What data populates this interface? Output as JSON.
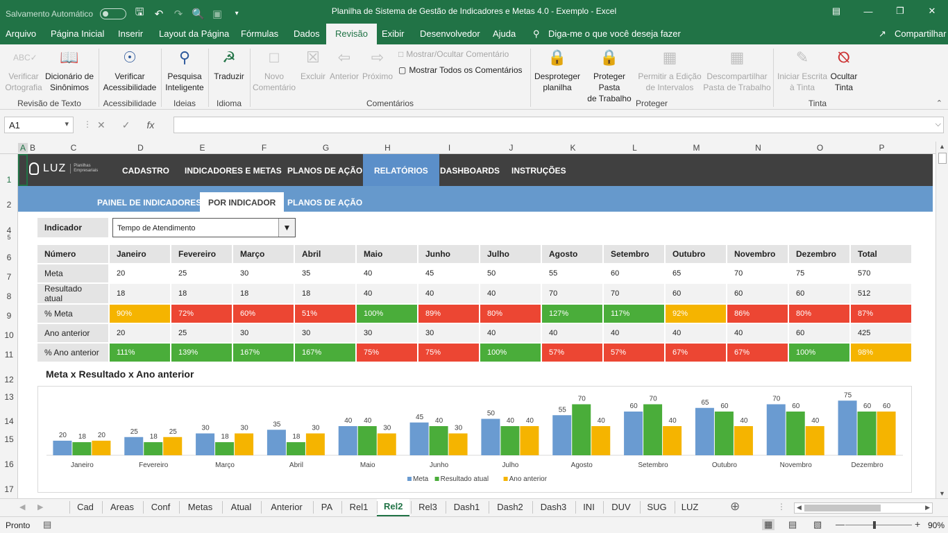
{
  "titlebar": {
    "autosave": "Salvamento Automático",
    "title": "Planilha de Sistema de Gestão de Indicadores e Metas 4.0 - Exemplo  -  Excel"
  },
  "menu": {
    "items": [
      "Arquivo",
      "Página Inicial",
      "Inserir",
      "Layout da Página",
      "Fórmulas",
      "Dados",
      "Revisão",
      "Exibir",
      "Desenvolvedor",
      "Ajuda"
    ],
    "active": "Revisão",
    "tell_me": "Diga-me o que você deseja fazer",
    "share": "Compartilhar"
  },
  "ribbon": {
    "verificar_ortografia": [
      "Verificar",
      "Ortografia"
    ],
    "dicionario": [
      "Dicionário de",
      "Sinônimos"
    ],
    "revisao_texto": "Revisão de Texto",
    "verificar_acess": [
      "Verificar",
      "Acessibilidade"
    ],
    "acessibilidade": "Acessibilidade",
    "pesquisa": [
      "Pesquisa",
      "Inteligente"
    ],
    "ideias": "Ideias",
    "traduzir": "Traduzir",
    "idioma": "Idioma",
    "novo_comentario": [
      "Novo",
      "Comentário"
    ],
    "excluir": "Excluir",
    "anterior": "Anterior",
    "proximo": "Próximo",
    "mostrar_ocultar": "Mostrar/Ocultar Comentário",
    "mostrar_todos": "Mostrar Todos os Comentários",
    "comentarios": "Comentários",
    "desproteger": [
      "Desproteger",
      "planilha"
    ],
    "proteger_pasta": [
      "Proteger Pasta",
      "de Trabalho"
    ],
    "permitir_edicao": [
      "Permitir a Edição",
      "de Intervalos"
    ],
    "descompartilhar": [
      "Descompartilhar",
      "Pasta de Trabalho"
    ],
    "proteger": "Proteger",
    "iniciar_escrita": [
      "Iniciar Escrita",
      "à Tinta"
    ],
    "ocultar_tinta": [
      "Ocultar",
      "Tinta"
    ],
    "tinta": "Tinta"
  },
  "formula": {
    "namebox": "A1",
    "fx": "fx"
  },
  "columns": [
    "A",
    "B",
    "C",
    "D",
    "E",
    "F",
    "G",
    "H",
    "I",
    "J",
    "K",
    "L",
    "M",
    "N",
    "O",
    "P"
  ],
  "rows": [
    "1",
    "2",
    "4",
    "5",
    "6",
    "7",
    "8",
    "9",
    "10",
    "11",
    "12",
    "13",
    "14",
    "15",
    "16",
    "17"
  ],
  "topnav": {
    "logo": "LUZ",
    "logo_sub": [
      "Planilhas",
      "Empresariais"
    ],
    "items": [
      "CADASTRO",
      "INDICADORES E METAS",
      "PLANOS DE AÇÃO",
      "RELATÓRIOS",
      "DASHBOARDS",
      "INSTRUÇÕES"
    ]
  },
  "subnav": {
    "items": [
      "PAINEL DE INDICADORES",
      "POR INDICADOR",
      "PLANOS DE AÇÃO"
    ]
  },
  "indicator": {
    "label": "Indicador",
    "value": "Tempo de Atendimento"
  },
  "table": {
    "headers": [
      "Número",
      "Janeiro",
      "Fevereiro",
      "Março",
      "Abril",
      "Maio",
      "Junho",
      "Julho",
      "Agosto",
      "Setembro",
      "Outubro",
      "Novembro",
      "Dezembro",
      "Total"
    ],
    "rows": [
      {
        "label": "Meta",
        "values": [
          "20",
          "25",
          "30",
          "35",
          "40",
          "45",
          "50",
          "55",
          "60",
          "65",
          "70",
          "75",
          "570"
        ]
      },
      {
        "label": "Resultado atual",
        "values": [
          "18",
          "18",
          "18",
          "18",
          "40",
          "40",
          "40",
          "70",
          "70",
          "60",
          "60",
          "60",
          "512"
        ]
      },
      {
        "label": "% Meta",
        "values": [
          "90%",
          "72%",
          "60%",
          "51%",
          "100%",
          "89%",
          "80%",
          "127%",
          "117%",
          "92%",
          "86%",
          "80%",
          "87%"
        ],
        "colors": [
          "y",
          "r",
          "r",
          "r",
          "g",
          "r",
          "r",
          "g",
          "g",
          "y",
          "r",
          "r",
          "r"
        ]
      },
      {
        "label": "Ano anterior",
        "values": [
          "20",
          "25",
          "30",
          "30",
          "30",
          "30",
          "40",
          "40",
          "40",
          "40",
          "40",
          "60",
          "425"
        ]
      },
      {
        "label": "% Ano anterior",
        "values": [
          "111%",
          "139%",
          "167%",
          "167%",
          "75%",
          "75%",
          "100%",
          "57%",
          "57%",
          "67%",
          "67%",
          "100%",
          "98%"
        ],
        "colors": [
          "g",
          "g",
          "g",
          "g",
          "r",
          "r",
          "g",
          "r",
          "r",
          "r",
          "r",
          "g",
          "y"
        ]
      }
    ]
  },
  "chart_data": {
    "type": "bar",
    "title": "Meta x Resultado x Ano anterior",
    "categories": [
      "Janeiro",
      "Fevereiro",
      "Março",
      "Abril",
      "Maio",
      "Junho",
      "Julho",
      "Agosto",
      "Setembro",
      "Outubro",
      "Novembro",
      "Dezembro"
    ],
    "series": [
      {
        "name": "Meta",
        "color": "#6a9bd1",
        "values": [
          20,
          25,
          30,
          35,
          40,
          45,
          50,
          55,
          60,
          65,
          70,
          75
        ]
      },
      {
        "name": "Resultado atual",
        "color": "#4aad3a",
        "values": [
          18,
          18,
          18,
          18,
          40,
          40,
          40,
          70,
          70,
          60,
          60,
          60
        ]
      },
      {
        "name": "Ano anterior",
        "color": "#f5b400",
        "values": [
          20,
          25,
          30,
          30,
          30,
          30,
          40,
          40,
          40,
          40,
          40,
          60
        ]
      }
    ],
    "ylim": [
      0,
      80
    ],
    "legend": "bottom",
    "grid": false
  },
  "tabs": {
    "items": [
      "Cad",
      "Areas",
      "Conf",
      "Metas",
      "Atual",
      "Anterior",
      "PA",
      "Rel1",
      "Rel2",
      "Rel3",
      "Dash1",
      "Dash2",
      "Dash3",
      "INI",
      "DUV",
      "SUG",
      "LUZ"
    ],
    "active": "Rel2"
  },
  "status": {
    "ready": "Pronto",
    "zoom": "90%"
  }
}
